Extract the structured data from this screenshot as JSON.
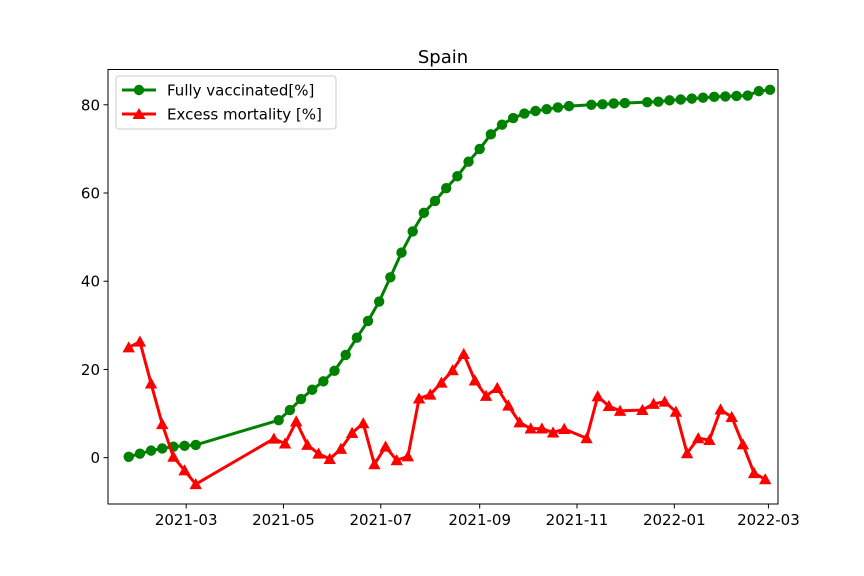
{
  "chart_data": {
    "type": "line",
    "title": "Spain",
    "xlabel": "",
    "ylabel": "",
    "x_axis": {
      "type": "date",
      "range": [
        "2021-01-11",
        "2022-03-07"
      ],
      "ticks": [
        "2021-03-01",
        "2021-05-01",
        "2021-07-01",
        "2021-09-01",
        "2021-11-01",
        "2022-01-01",
        "2022-03-01"
      ],
      "tick_labels": [
        "2021-03",
        "2021-05",
        "2021-07",
        "2021-09",
        "2021-11",
        "2022-01",
        "2022-03"
      ]
    },
    "y_axis": {
      "range": [
        -10.5,
        88
      ],
      "ticks": [
        0,
        20,
        40,
        60,
        80
      ],
      "tick_labels": [
        "0",
        "20",
        "40",
        "60",
        "80"
      ]
    },
    "grid": false,
    "legend_position": "top-left",
    "series": [
      {
        "name": "Fully vaccinated[%]",
        "color": "#008000",
        "marker": "circle",
        "points": [
          [
            "2021-01-24",
            0.2
          ],
          [
            "2021-01-31",
            0.9
          ],
          [
            "2021-02-07",
            1.6
          ],
          [
            "2021-02-14",
            2.1
          ],
          [
            "2021-02-21",
            2.5
          ],
          [
            "2021-02-28",
            2.7
          ],
          [
            "2021-03-07",
            2.9
          ],
          [
            "2021-04-28",
            8.5
          ],
          [
            "2021-05-05",
            10.8
          ],
          [
            "2021-05-12",
            13.3
          ],
          [
            "2021-05-19",
            15.4
          ],
          [
            "2021-05-26",
            17.3
          ],
          [
            "2021-06-02",
            19.7
          ],
          [
            "2021-06-09",
            23.3
          ],
          [
            "2021-06-16",
            27.2
          ],
          [
            "2021-06-23",
            31.0
          ],
          [
            "2021-06-30",
            35.4
          ],
          [
            "2021-07-07",
            40.9
          ],
          [
            "2021-07-14",
            46.5
          ],
          [
            "2021-07-21",
            51.3
          ],
          [
            "2021-07-28",
            55.5
          ],
          [
            "2021-08-04",
            58.2
          ],
          [
            "2021-08-11",
            61.1
          ],
          [
            "2021-08-18",
            63.8
          ],
          [
            "2021-08-25",
            67.1
          ],
          [
            "2021-09-01",
            70.0
          ],
          [
            "2021-09-08",
            73.3
          ],
          [
            "2021-09-15",
            75.5
          ],
          [
            "2021-09-22",
            77.0
          ],
          [
            "2021-09-29",
            78.0
          ],
          [
            "2021-10-06",
            78.6
          ],
          [
            "2021-10-13",
            79.0
          ],
          [
            "2021-10-20",
            79.4
          ],
          [
            "2021-10-27",
            79.7
          ],
          [
            "2021-11-10",
            80.0
          ],
          [
            "2021-11-17",
            80.1
          ],
          [
            "2021-11-24",
            80.3
          ],
          [
            "2021-12-01",
            80.4
          ],
          [
            "2021-12-15",
            80.6
          ],
          [
            "2021-12-22",
            80.7
          ],
          [
            "2021-12-29",
            81.0
          ],
          [
            "2022-01-05",
            81.2
          ],
          [
            "2022-01-12",
            81.4
          ],
          [
            "2022-01-19",
            81.6
          ],
          [
            "2022-01-26",
            81.8
          ],
          [
            "2022-02-02",
            81.9
          ],
          [
            "2022-02-09",
            82.0
          ],
          [
            "2022-02-16",
            82.1
          ],
          [
            "2022-02-23",
            83.1
          ],
          [
            "2022-03-02",
            83.4
          ]
        ]
      },
      {
        "name": "Excess mortality [%]",
        "color": "#ff0000",
        "marker": "triangle",
        "points": [
          [
            "2021-01-24",
            25.0
          ],
          [
            "2021-01-31",
            26.3
          ],
          [
            "2021-02-07",
            16.8
          ],
          [
            "2021-02-14",
            7.6
          ],
          [
            "2021-02-21",
            0.2
          ],
          [
            "2021-02-28",
            -2.9
          ],
          [
            "2021-03-07",
            -6.0
          ],
          [
            "2021-04-25",
            4.3
          ],
          [
            "2021-05-02",
            3.2
          ],
          [
            "2021-05-09",
            8.2
          ],
          [
            "2021-05-16",
            2.9
          ],
          [
            "2021-05-23",
            0.9
          ],
          [
            "2021-05-30",
            -0.3
          ],
          [
            "2021-06-06",
            2.0
          ],
          [
            "2021-06-13",
            5.6
          ],
          [
            "2021-06-20",
            7.8
          ],
          [
            "2021-06-27",
            -1.5
          ],
          [
            "2021-07-04",
            2.5
          ],
          [
            "2021-07-11",
            -0.6
          ],
          [
            "2021-07-18",
            0.3
          ],
          [
            "2021-07-25",
            13.4
          ],
          [
            "2021-08-01",
            14.3
          ],
          [
            "2021-08-08",
            17.0
          ],
          [
            "2021-08-15",
            19.8
          ],
          [
            "2021-08-22",
            23.5
          ],
          [
            "2021-08-29",
            17.5
          ],
          [
            "2021-09-05",
            14.0
          ],
          [
            "2021-09-12",
            15.8
          ],
          [
            "2021-09-19",
            11.8
          ],
          [
            "2021-09-26",
            8.0
          ],
          [
            "2021-10-03",
            6.6
          ],
          [
            "2021-10-10",
            6.6
          ],
          [
            "2021-10-17",
            5.7
          ],
          [
            "2021-10-24",
            6.5
          ],
          [
            "2021-11-07",
            4.4
          ],
          [
            "2021-11-14",
            13.9
          ],
          [
            "2021-11-21",
            11.7
          ],
          [
            "2021-11-28",
            10.6
          ],
          [
            "2021-12-12",
            10.8
          ],
          [
            "2021-12-19",
            12.2
          ],
          [
            "2021-12-26",
            12.7
          ],
          [
            "2022-01-02",
            10.4
          ],
          [
            "2022-01-09",
            1.0
          ],
          [
            "2022-01-16",
            4.4
          ],
          [
            "2022-01-23",
            4.0
          ],
          [
            "2022-01-30",
            10.9
          ],
          [
            "2022-02-06",
            9.2
          ],
          [
            "2022-02-13",
            3.0
          ],
          [
            "2022-02-20",
            -3.5
          ],
          [
            "2022-02-27",
            -4.9
          ]
        ]
      }
    ]
  }
}
